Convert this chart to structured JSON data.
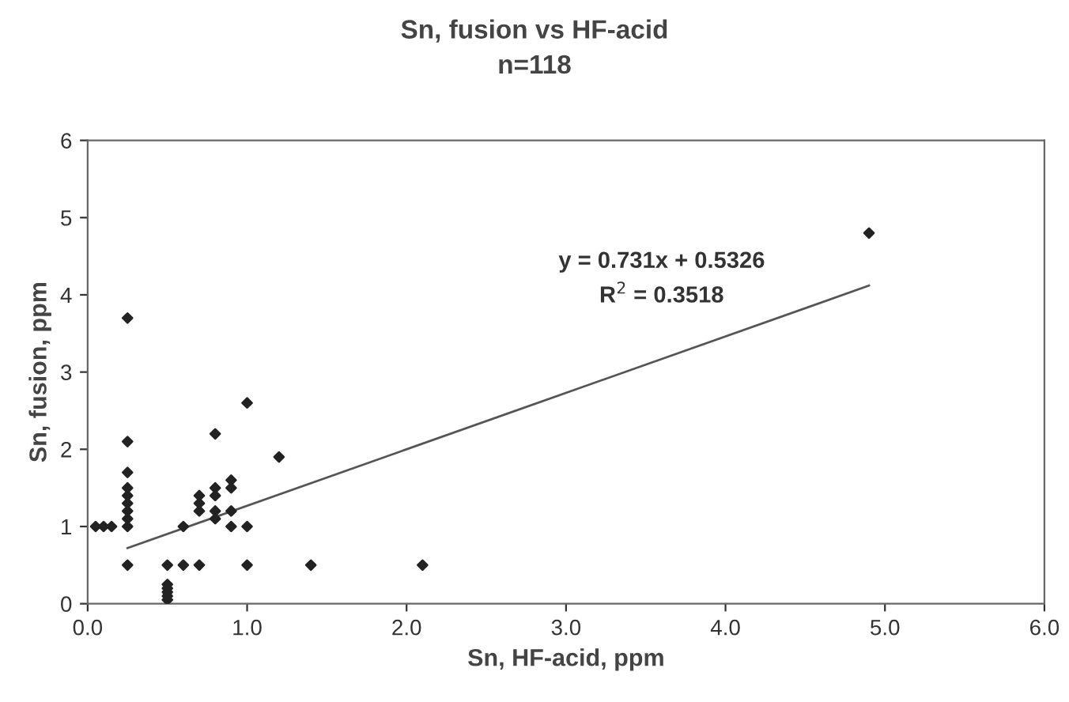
{
  "chart_data": {
    "type": "scatter",
    "title": "Sn, fusion vs HF-acid",
    "subtitle": "n=118",
    "xlabel": "Sn, HF-acid, ppm",
    "ylabel": "Sn, fusion, ppm",
    "xlim": [
      0,
      6
    ],
    "ylim": [
      0,
      6
    ],
    "xticks": [
      {
        "value": 0,
        "label": "0.0"
      },
      {
        "value": 1,
        "label": "1.0"
      },
      {
        "value": 2,
        "label": "2.0"
      },
      {
        "value": 3,
        "label": "3.0"
      },
      {
        "value": 4,
        "label": "4.0"
      },
      {
        "value": 5,
        "label": "5.0"
      },
      {
        "value": 6,
        "label": "6.0"
      }
    ],
    "yticks": [
      0,
      1,
      2,
      3,
      4,
      5,
      6
    ],
    "grid": false,
    "legend": false,
    "marker": "diamond",
    "annotations": [
      "y = 0.731x + 0.5326",
      "R$^{2}$ = 0.3518"
    ],
    "series": [
      {
        "color": "#222222",
        "x": [
          0.25,
          0.25,
          0.25,
          0.25,
          0.25,
          0.25,
          0.25,
          0.25,
          0.25,
          0.25,
          0.05,
          0.1,
          0.15,
          0.5,
          0.5,
          0.5,
          0.5,
          0.5,
          0.5,
          0.6,
          0.6,
          0.7,
          0.7,
          0.7,
          0.7,
          0.8,
          0.8,
          0.8,
          0.8,
          0.8,
          0.9,
          0.9,
          0.9,
          0.9,
          1.0,
          1.0,
          1.0,
          1.2,
          1.4,
          2.1,
          4.9
        ],
        "values": [
          0.5,
          1.0,
          1.1,
          1.2,
          1.3,
          1.4,
          1.5,
          1.7,
          2.1,
          3.7,
          1.0,
          1.0,
          1.0,
          0.5,
          0.05,
          0.1,
          0.15,
          0.2,
          0.25,
          1.0,
          0.5,
          1.2,
          1.3,
          1.4,
          0.5,
          2.2,
          1.5,
          1.4,
          1.2,
          1.1,
          1.6,
          1.5,
          1.2,
          1.0,
          2.6,
          1.0,
          0.5,
          1.9,
          0.5,
          0.5,
          4.8
        ]
      },
      {
        "type": "line",
        "color": "#555555",
        "x": [
          0.25,
          4.9
        ],
        "values": [
          0.72,
          4.12
        ],
        "marker": "none",
        "line_style": "solid"
      }
    ]
  }
}
